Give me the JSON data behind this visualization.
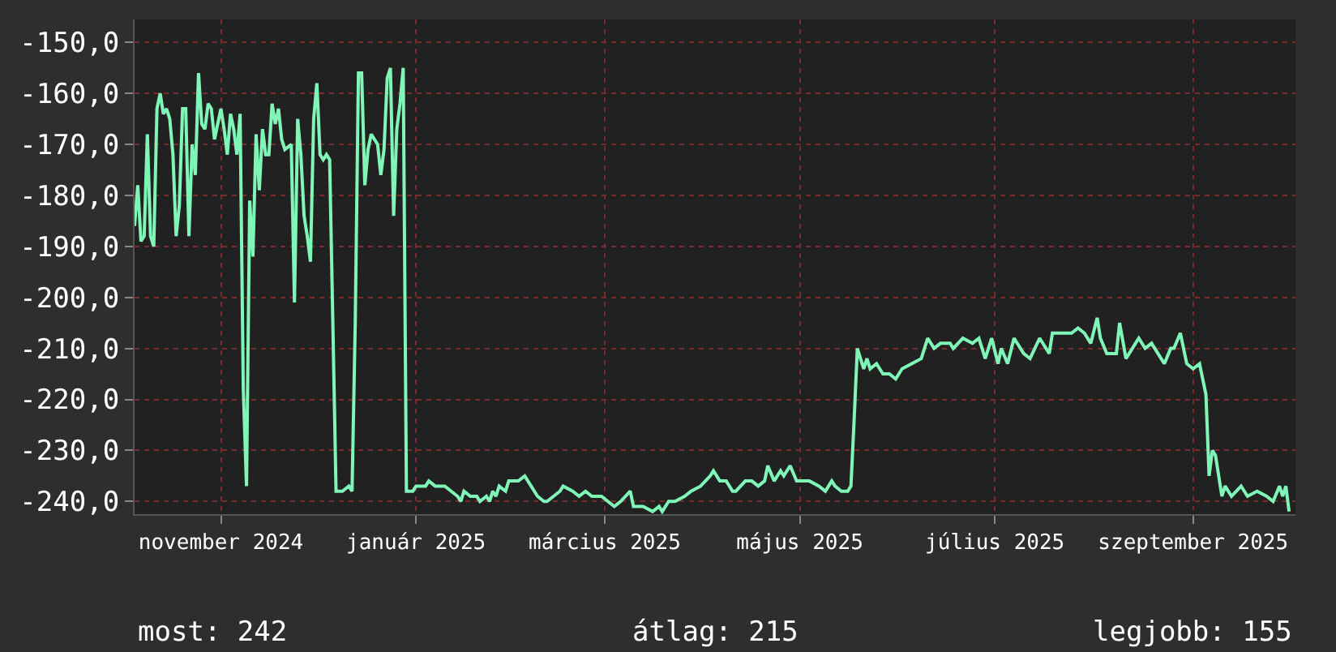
{
  "chart_data": {
    "type": "line",
    "x": [
      "2024-10-05",
      "2024-10-06",
      "2024-10-07",
      "2024-10-08",
      "2024-10-09",
      "2024-10-10",
      "2024-10-11",
      "2024-10-12",
      "2024-10-13",
      "2024-10-14",
      "2024-10-15",
      "2024-10-16",
      "2024-10-17",
      "2024-10-18",
      "2024-10-19",
      "2024-10-20",
      "2024-10-21",
      "2024-10-22",
      "2024-10-23",
      "2024-10-24",
      "2024-10-25",
      "2024-10-26",
      "2024-10-27",
      "2024-10-28",
      "2024-10-29",
      "2024-10-30",
      "2024-10-31",
      "2024-11-01",
      "2024-11-02",
      "2024-11-03",
      "2024-11-04",
      "2024-11-05",
      "2024-11-06",
      "2024-11-07",
      "2024-11-08",
      "2024-11-09",
      "2024-11-10",
      "2024-11-11",
      "2024-11-12",
      "2024-11-13",
      "2024-11-14",
      "2024-11-15",
      "2024-11-16",
      "2024-11-17",
      "2024-11-18",
      "2024-11-19",
      "2024-11-20",
      "2024-11-21",
      "2024-11-23",
      "2024-11-24",
      "2024-11-25",
      "2024-11-26",
      "2024-11-27",
      "2024-11-28",
      "2024-11-29",
      "2024-11-30",
      "2024-12-01",
      "2024-12-02",
      "2024-12-03",
      "2024-12-04",
      "2024-12-05",
      "2024-12-06",
      "2024-12-07",
      "2024-12-08",
      "2024-12-09",
      "2024-12-11",
      "2024-12-12",
      "2024-12-13",
      "2024-12-14",
      "2024-12-15",
      "2024-12-16",
      "2024-12-17",
      "2024-12-18",
      "2024-12-19",
      "2024-12-20",
      "2024-12-21",
      "2024-12-22",
      "2024-12-23",
      "2024-12-24",
      "2024-12-25",
      "2024-12-26",
      "2024-12-27",
      "2024-12-28",
      "2024-12-29",
      "2024-12-31",
      "2025-01-01",
      "2025-01-02",
      "2025-01-04",
      "2025-01-05",
      "2025-01-07",
      "2025-01-09",
      "2025-01-10",
      "2025-01-12",
      "2025-01-14",
      "2025-01-15",
      "2025-01-16",
      "2025-01-18",
      "2025-01-20",
      "2025-01-21",
      "2025-01-23",
      "2025-01-24",
      "2025-01-25",
      "2025-01-26",
      "2025-01-27",
      "2025-01-29",
      "2025-01-30",
      "2025-02-01",
      "2025-02-02",
      "2025-02-04",
      "2025-02-05",
      "2025-02-07",
      "2025-02-08",
      "2025-02-10",
      "2025-02-11",
      "2025-02-13",
      "2025-02-15",
      "2025-02-16",
      "2025-02-19",
      "2025-02-21",
      "2025-02-23",
      "2025-02-25",
      "2025-02-28",
      "2025-03-02",
      "2025-03-04",
      "2025-03-06",
      "2025-03-09",
      "2025-03-10",
      "2025-03-13",
      "2025-03-16",
      "2025-03-18",
      "2025-03-19",
      "2025-03-21",
      "2025-03-23",
      "2025-03-26",
      "2025-03-28",
      "2025-03-31",
      "2025-04-03",
      "2025-04-04",
      "2025-04-06",
      "2025-04-08",
      "2025-04-10",
      "2025-04-11",
      "2025-04-14",
      "2025-04-16",
      "2025-04-18",
      "2025-04-20",
      "2025-04-21",
      "2025-04-23",
      "2025-04-25",
      "2025-04-26",
      "2025-04-28",
      "2025-04-30",
      "2025-05-02",
      "2025-05-04",
      "2025-05-07",
      "2025-05-09",
      "2025-05-11",
      "2025-05-12",
      "2025-05-14",
      "2025-05-16",
      "2025-05-17",
      "2025-05-18",
      "2025-05-19",
      "2025-05-21",
      "2025-05-22",
      "2025-05-23",
      "2025-05-25",
      "2025-05-27",
      "2025-05-29",
      "2025-05-31",
      "2025-06-02",
      "2025-06-05",
      "2025-06-08",
      "2025-06-10",
      "2025-06-12",
      "2025-06-14",
      "2025-06-17",
      "2025-06-18",
      "2025-06-21",
      "2025-06-24",
      "2025-06-26",
      "2025-06-28",
      "2025-06-30",
      "2025-07-02",
      "2025-07-03",
      "2025-07-05",
      "2025-07-07",
      "2025-07-10",
      "2025-07-12",
      "2025-07-15",
      "2025-07-18",
      "2025-07-19",
      "2025-07-22",
      "2025-07-25",
      "2025-07-27",
      "2025-07-29",
      "2025-07-31",
      "2025-08-02",
      "2025-08-03",
      "2025-08-05",
      "2025-08-08",
      "2025-08-09",
      "2025-08-11",
      "2025-08-13",
      "2025-08-15",
      "2025-08-17",
      "2025-08-19",
      "2025-08-21",
      "2025-08-23",
      "2025-08-25",
      "2025-08-26",
      "2025-08-28",
      "2025-08-30",
      "2025-09-01",
      "2025-09-03",
      "2025-09-05",
      "2025-09-06",
      "2025-09-07",
      "2025-09-08",
      "2025-09-10",
      "2025-09-11",
      "2025-09-13",
      "2025-09-16",
      "2025-09-18",
      "2025-09-21",
      "2025-09-24",
      "2025-09-26",
      "2025-09-28",
      "2025-09-29",
      "2025-09-30",
      "2025-10-01"
    ],
    "series": [
      {
        "color": "#7ff5b8",
        "values": [
          -186,
          -178,
          -189,
          -188,
          -168,
          -188,
          -190,
          -163,
          -160,
          -164,
          -163,
          -165,
          -172,
          -188,
          -182,
          -163,
          -163,
          -188,
          -170,
          -176,
          -156,
          -166,
          -167,
          -162,
          -163,
          -169,
          -166,
          -163,
          -167,
          -172,
          -164,
          -167,
          -172,
          -164,
          -218,
          -237,
          -181,
          -192,
          -168,
          -179,
          -167,
          -172,
          -172,
          -162,
          -166,
          -163,
          -169,
          -171,
          -170,
          -201,
          -165,
          -172,
          -184,
          -188,
          -193,
          -165,
          -158,
          -172,
          -173,
          -172,
          -173,
          -205,
          -238,
          -238,
          -238,
          -237,
          -238,
          -205,
          -156,
          -156,
          -178,
          -171,
          -168,
          -169,
          -170,
          -176,
          -171,
          -157,
          -155,
          -184,
          -167,
          -162,
          -155,
          -238,
          -238,
          -237,
          -237,
          -237,
          -236,
          -237,
          -237,
          -237,
          -238,
          -239,
          -240,
          -238,
          -239,
          -239,
          -240,
          -239,
          -240,
          -238,
          -239,
          -237,
          -238,
          -236,
          -236,
          -236,
          -235,
          -236,
          -238,
          -239,
          -240,
          -240,
          -239,
          -238,
          -237,
          -238,
          -239,
          -238,
          -239,
          -239,
          -240,
          -241,
          -240,
          -238,
          -241,
          -241,
          -242,
          -241,
          -242,
          -240,
          -240,
          -239,
          -238,
          -237,
          -235,
          -234,
          -236,
          -236,
          -238,
          -238,
          -236,
          -236,
          -237,
          -236,
          -233,
          -236,
          -234,
          -235,
          -233,
          -236,
          -236,
          -236,
          -237,
          -238,
          -236,
          -237,
          -238,
          -238,
          -237,
          -224,
          -210,
          -214,
          -212,
          -214,
          -213,
          -215,
          -215,
          -216,
          -214,
          -213,
          -212,
          -208,
          -210,
          -209,
          -209,
          -210,
          -208,
          -209,
          -208,
          -212,
          -208,
          -213,
          -210,
          -213,
          -208,
          -211,
          -212,
          -208,
          -211,
          -207,
          -207,
          -207,
          -206,
          -207,
          -209,
          -204,
          -208,
          -211,
          -211,
          -205,
          -212,
          -210,
          -208,
          -210,
          -209,
          -211,
          -213,
          -210,
          -210,
          -207,
          -213,
          -214,
          -213,
          -219,
          -235,
          -230,
          -231,
          -239,
          -237,
          -239,
          -237,
          -239,
          -238,
          -239,
          -240,
          -237,
          -239,
          -237,
          -242
        ]
      }
    ],
    "xlim": [
      "2024-10-05",
      "2025-10-03"
    ],
    "xticks": [
      {
        "value": "2024-11-01",
        "label": "november 2024"
      },
      {
        "value": "2025-01-01",
        "label": "január 2025"
      },
      {
        "value": "2025-03-01",
        "label": "március 2025"
      },
      {
        "value": "2025-05-01",
        "label": "május 2025"
      },
      {
        "value": "2025-07-01",
        "label": "július 2025"
      },
      {
        "value": "2025-09-01",
        "label": "szeptember 2025"
      }
    ],
    "ylim": [
      -242.5,
      -145.5
    ],
    "yticks": [
      {
        "value": -150,
        "label": "-150,0"
      },
      {
        "value": -160,
        "label": "-160,0"
      },
      {
        "value": -170,
        "label": "-170,0"
      },
      {
        "value": -180,
        "label": "-180,0"
      },
      {
        "value": -190,
        "label": "-190,0"
      },
      {
        "value": -200,
        "label": "-200,0"
      },
      {
        "value": -210,
        "label": "-210,0"
      },
      {
        "value": -220,
        "label": "-220,0"
      },
      {
        "value": -230,
        "label": "-230,0"
      },
      {
        "value": -240,
        "label": "-240,0"
      }
    ],
    "grid": true,
    "annotations": [
      "most: 242",
      "átlag: 215",
      "legjobb: 155"
    ]
  }
}
